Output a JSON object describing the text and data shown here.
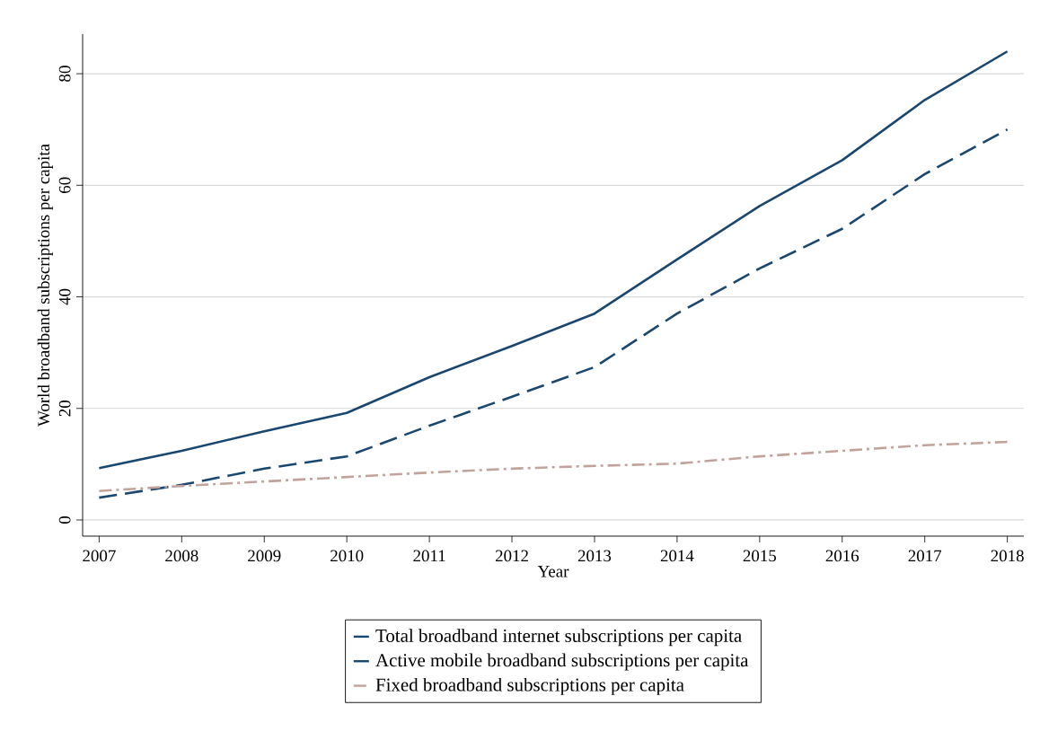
{
  "chart_data": {
    "type": "line",
    "xlabel": "Year",
    "ylabel": "World broadband subscriptions per capita",
    "x": [
      2007,
      2008,
      2009,
      2010,
      2011,
      2012,
      2013,
      2014,
      2015,
      2016,
      2017,
      2018
    ],
    "series": [
      {
        "name": "Total broadband internet subscriptions per capita",
        "color": "#1a476f",
        "line_style": "solid",
        "values": [
          9.3,
          12.4,
          15.9,
          19.2,
          25.6,
          31.2,
          37.0,
          46.7,
          56.3,
          64.5,
          75.3,
          84.0
        ]
      },
      {
        "name": "Active mobile broadband subscriptions per capita",
        "color": "#1a476f",
        "line_style": "dashed",
        "values": [
          4.0,
          6.3,
          9.2,
          11.4,
          16.9,
          22.1,
          27.4,
          37.0,
          45.1,
          52.2,
          62.0,
          70.0
        ]
      },
      {
        "name": "Fixed broadband subscriptions per capita",
        "color": "#c2a39c",
        "line_style": "dashdot",
        "values": [
          5.2,
          6.1,
          6.9,
          7.7,
          8.5,
          9.2,
          9.7,
          10.1,
          11.4,
          12.4,
          13.4,
          14.0
        ]
      }
    ],
    "xlim": [
      2006.8,
      2018.2
    ],
    "ylim": [
      -2.9,
      87.1
    ],
    "xticks": [
      2007,
      2008,
      2009,
      2010,
      2011,
      2012,
      2013,
      2014,
      2015,
      2016,
      2017,
      2018
    ],
    "yticks": [
      0,
      20,
      40,
      60,
      80
    ],
    "grid": "y",
    "legend": "bottom",
    "marker": "none"
  }
}
